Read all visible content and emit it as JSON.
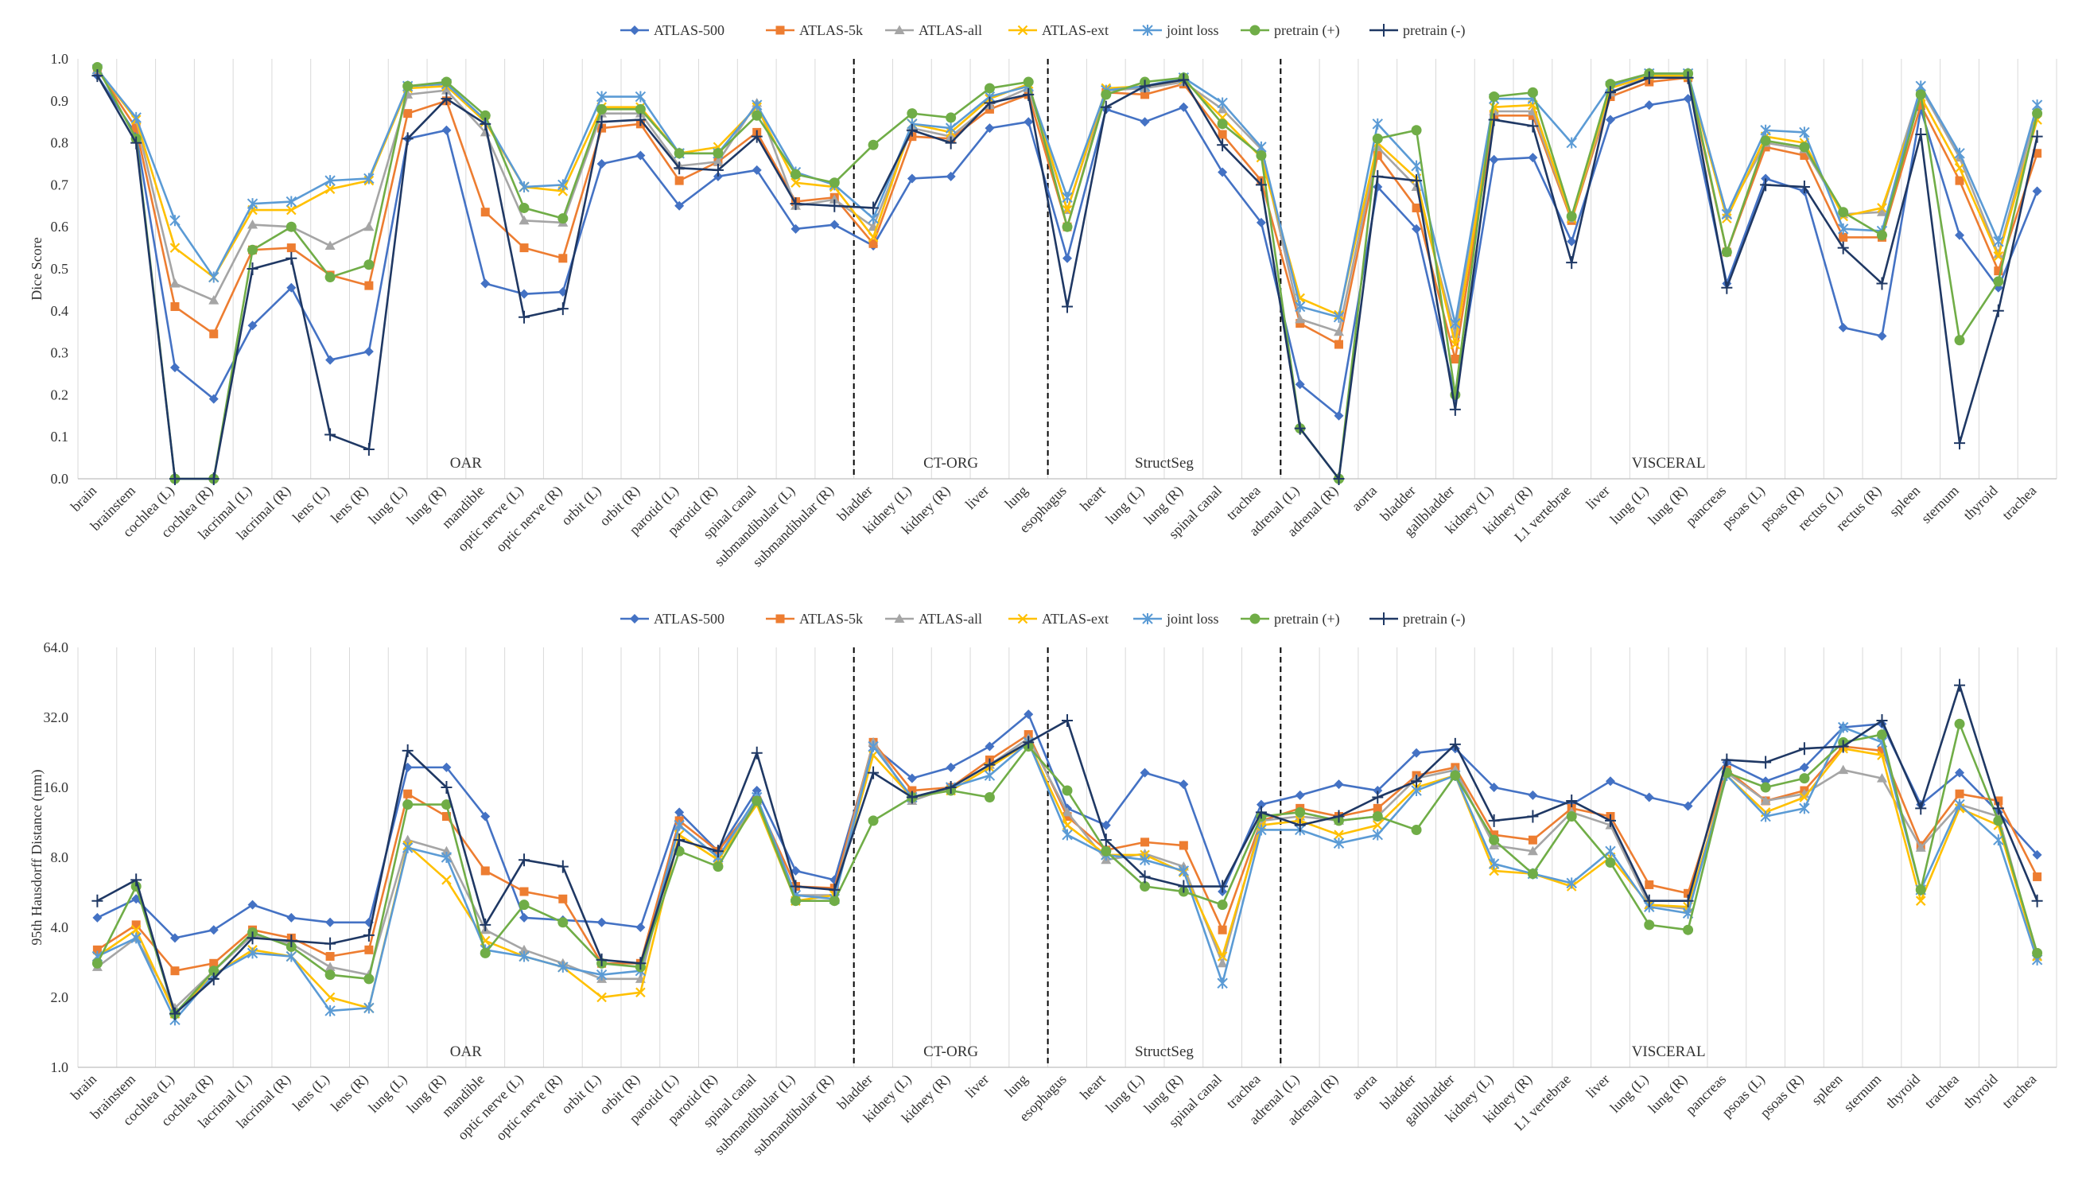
{
  "legend": [
    "ATLAS-500",
    "ATLAS-5k",
    "ATLAS-all",
    "ATLAS-ext",
    "joint loss",
    "pretrain (+)",
    "pretrain (-)"
  ],
  "series_style": [
    {
      "name": "ATLAS-500",
      "color": "#4472c4",
      "marker": "diamond"
    },
    {
      "name": "ATLAS-5k",
      "color": "#ed7d31",
      "marker": "square"
    },
    {
      "name": "ATLAS-all",
      "color": "#a5a5a5",
      "marker": "triangle"
    },
    {
      "name": "ATLAS-ext",
      "color": "#ffc000",
      "marker": "x"
    },
    {
      "name": "joint loss",
      "color": "#5b9bd5",
      "marker": "star"
    },
    {
      "name": "pretrain (+)",
      "color": "#70ad47",
      "marker": "circle"
    },
    {
      "name": "pretrain (-)",
      "color": "#1f3864",
      "marker": "plus"
    }
  ],
  "chart_data": [
    {
      "type": "line",
      "title": "",
      "ylabel": "Dice Score",
      "xlabel": "",
      "ylim": [
        0,
        1
      ],
      "yticks": [
        "0.0",
        "0.1",
        "0.2",
        "0.3",
        "0.4",
        "0.5",
        "0.6",
        "0.7",
        "0.8",
        "0.9",
        "1.0"
      ],
      "categories": [
        "brain",
        "brainstem",
        "cochlea (L)",
        "cochlea (R)",
        "lacrimal (L)",
        "lacrimal (R)",
        "lens (L)",
        "lens (R)",
        "lung (L)",
        "lung (R)",
        "mandible",
        "optic nerve (L)",
        "optic nerve (R)",
        "orbit (L)",
        "orbit (R)",
        "parotid (L)",
        "parotid (R)",
        "spinal canal",
        "submandibular (L)",
        "submandibular (R)",
        "bladder",
        "kidney (L)",
        "kidney (R)",
        "liver",
        "lung",
        "esophagus",
        "heart",
        "lung (L)",
        "lung (R)",
        "spinal canal",
        "trachea",
        "adrenal (L)",
        "adrenal (R)",
        "aorta",
        "bladder",
        "gallbladder",
        "kidney (L)",
        "kidney (R)",
        "L1 vertebrae",
        "liver",
        "lung (L)",
        "lung (R)",
        "pancreas",
        "psoas (L)",
        "psoas (R)",
        "rectus (L)",
        "rectus (R)",
        "spleen",
        "sternum",
        "thyroid",
        "trachea"
      ],
      "groups": [
        {
          "label": "OAR",
          "start": 0,
          "end": 19
        },
        {
          "label": "CT-ORG",
          "start": 20,
          "end": 24
        },
        {
          "label": "StructSeg",
          "start": 25,
          "end": 30
        },
        {
          "label": "VISCERAL",
          "start": 31,
          "end": 50
        }
      ],
      "series": [
        {
          "name": "ATLAS-500",
          "values": [
            0.96,
            0.82,
            0.265,
            0.19,
            0.365,
            0.455,
            0.283,
            0.303,
            0.81,
            0.83,
            0.465,
            0.44,
            0.445,
            0.75,
            0.77,
            0.65,
            0.72,
            0.735,
            0.595,
            0.605,
            0.555,
            0.715,
            0.72,
            0.835,
            0.85,
            0.525,
            0.88,
            0.85,
            0.885,
            0.73,
            0.61,
            0.225,
            0.15,
            0.695,
            0.595,
            0.195,
            0.76,
            0.765,
            0.565,
            0.855,
            0.89,
            0.905,
            0.465,
            0.715,
            0.685,
            0.36,
            0.34,
            0.88,
            0.58,
            0.455,
            0.685
          ]
        },
        {
          "name": "ATLAS-5k",
          "values": [
            0.975,
            0.835,
            0.41,
            0.345,
            0.545,
            0.55,
            0.485,
            0.46,
            0.87,
            0.9,
            0.635,
            0.55,
            0.525,
            0.835,
            0.845,
            0.71,
            0.755,
            0.825,
            0.66,
            0.67,
            0.56,
            0.815,
            0.81,
            0.88,
            0.915,
            0.6,
            0.92,
            0.915,
            0.94,
            0.82,
            0.71,
            0.37,
            0.32,
            0.77,
            0.645,
            0.285,
            0.865,
            0.865,
            0.615,
            0.91,
            0.945,
            0.955,
            0.54,
            0.79,
            0.77,
            0.575,
            0.575,
            0.89,
            0.71,
            0.495,
            0.775
          ]
        },
        {
          "name": "ATLAS-all",
          "values": [
            0.975,
            0.855,
            0.465,
            0.425,
            0.605,
            0.6,
            0.555,
            0.6,
            0.915,
            0.925,
            0.825,
            0.615,
            0.61,
            0.87,
            0.87,
            0.745,
            0.755,
            0.895,
            0.65,
            0.665,
            0.6,
            0.835,
            0.815,
            0.89,
            0.93,
            0.64,
            0.925,
            0.93,
            0.945,
            0.88,
            0.785,
            0.38,
            0.35,
            0.79,
            0.695,
            0.345,
            0.875,
            0.875,
            0.62,
            0.92,
            0.96,
            0.96,
            0.63,
            0.8,
            0.785,
            0.63,
            0.635,
            0.93,
            0.765,
            0.535,
            0.88
          ]
        },
        {
          "name": "ATLAS-ext",
          "values": [
            0.975,
            0.855,
            0.55,
            0.48,
            0.64,
            0.64,
            0.69,
            0.71,
            0.93,
            0.935,
            0.85,
            0.695,
            0.685,
            0.885,
            0.885,
            0.775,
            0.79,
            0.885,
            0.705,
            0.695,
            0.575,
            0.845,
            0.825,
            0.905,
            0.94,
            0.64,
            0.93,
            0.935,
            0.95,
            0.86,
            0.765,
            0.43,
            0.39,
            0.8,
            0.715,
            0.32,
            0.885,
            0.89,
            0.62,
            0.93,
            0.96,
            0.96,
            0.62,
            0.815,
            0.8,
            0.625,
            0.645,
            0.91,
            0.74,
            0.53,
            0.855
          ]
        },
        {
          "name": "joint loss",
          "values": [
            0.975,
            0.86,
            0.615,
            0.48,
            0.655,
            0.66,
            0.71,
            0.715,
            0.935,
            0.94,
            0.855,
            0.695,
            0.7,
            0.91,
            0.91,
            0.775,
            0.775,
            0.89,
            0.73,
            0.7,
            0.62,
            0.845,
            0.835,
            0.91,
            0.935,
            0.67,
            0.925,
            0.935,
            0.955,
            0.895,
            0.79,
            0.41,
            0.385,
            0.845,
            0.745,
            0.37,
            0.905,
            0.905,
            0.8,
            0.935,
            0.965,
            0.965,
            0.63,
            0.83,
            0.825,
            0.595,
            0.59,
            0.935,
            0.775,
            0.565,
            0.89
          ]
        },
        {
          "name": "pretrain (+)",
          "values": [
            0.98,
            0.81,
            0.0,
            0.0,
            0.545,
            0.6,
            0.48,
            0.51,
            0.935,
            0.945,
            0.865,
            0.645,
            0.62,
            0.88,
            0.88,
            0.775,
            0.775,
            0.865,
            0.725,
            0.705,
            0.795,
            0.87,
            0.86,
            0.93,
            0.945,
            0.6,
            0.915,
            0.945,
            0.955,
            0.845,
            0.77,
            0.12,
            0.0,
            0.81,
            0.83,
            0.2,
            0.91,
            0.92,
            0.625,
            0.94,
            0.965,
            0.965,
            0.54,
            0.805,
            0.79,
            0.635,
            0.58,
            0.915,
            0.33,
            0.47,
            0.87
          ]
        },
        {
          "name": "pretrain (-)",
          "values": [
            0.96,
            0.8,
            0.0,
            0.0,
            0.5,
            0.525,
            0.105,
            0.07,
            0.81,
            0.905,
            0.845,
            0.385,
            0.405,
            0.85,
            0.855,
            0.74,
            0.735,
            0.815,
            0.655,
            0.65,
            0.645,
            0.83,
            0.8,
            0.895,
            0.915,
            0.41,
            0.885,
            0.935,
            0.95,
            0.795,
            0.7,
            0.12,
            0.0,
            0.72,
            0.71,
            0.165,
            0.855,
            0.84,
            0.515,
            0.92,
            0.955,
            0.955,
            0.455,
            0.7,
            0.695,
            0.55,
            0.465,
            0.82,
            0.085,
            0.4,
            0.815
          ]
        }
      ]
    },
    {
      "type": "line",
      "title": "",
      "ylabel": "95th Hausdorff Distance (mm)",
      "xlabel": "",
      "yscale": "log2",
      "ylim": [
        1,
        64
      ],
      "yticks": [
        "1.0",
        "2.0",
        "4.0",
        "8.0",
        "16.0",
        "32.0",
        "64.0"
      ],
      "categories": [
        "brain",
        "brainstem",
        "cochlea (L)",
        "cochlea (R)",
        "lacrimal (L)",
        "lacrimal (R)",
        "lens (L)",
        "lens (R)",
        "lung (L)",
        "lung (R)",
        "mandible",
        "optic nerve (L)",
        "optic nerve (R)",
        "orbit (L)",
        "orbit (R)",
        "parotid (L)",
        "parotid (R)",
        "spinal canal",
        "submandibular (L)",
        "submandibular (R)",
        "bladder",
        "kidney (L)",
        "kidney (R)",
        "liver",
        "lung",
        "esophagus",
        "heart",
        "lung (L)",
        "lung (R)",
        "spinal canal",
        "trachea",
        "adrenal (L)",
        "adrenal (R)",
        "aorta",
        "bladder",
        "gallbladder",
        "kidney (L)",
        "kidney (R)",
        "L1 vertebrae",
        "liver",
        "lung (L)",
        "lung (R)",
        "pancreas",
        "psoas (L)",
        "psoas (R)",
        "spleen",
        "sternum",
        "thyroid",
        "trachea",
        "thyroid",
        "trachea"
      ],
      "groups": [
        {
          "label": "OAR",
          "start": 0,
          "end": 19
        },
        {
          "label": "CT-ORG",
          "start": 20,
          "end": 24
        },
        {
          "label": "StructSeg",
          "start": 25,
          "end": 30
        },
        {
          "label": "VISCERAL",
          "start": 31,
          "end": 50
        }
      ],
      "series": [
        {
          "name": "ATLAS-500",
          "values": [
            4.4,
            5.3,
            3.6,
            3.9,
            5.0,
            4.4,
            4.2,
            4.2,
            19.5,
            19.5,
            12.0,
            4.4,
            4.3,
            4.2,
            4.0,
            12.5,
            8.5,
            15.5,
            7.0,
            6.4,
            24.0,
            17.5,
            19.5,
            24.0,
            33.0,
            13.0,
            11.0,
            18.5,
            16.5,
            5.7,
            13.5,
            14.8,
            16.5,
            15.5,
            22.5,
            23.5,
            16.0,
            14.8,
            13.5,
            17.0,
            14.5,
            13.3,
            20.5,
            17.0,
            19.5,
            29.0,
            30.0,
            13.5,
            18.5,
            12.5,
            8.2
          ]
        },
        {
          "name": "ATLAS-5k",
          "values": [
            3.2,
            4.1,
            2.6,
            2.8,
            3.9,
            3.6,
            3.0,
            3.2,
            15.0,
            12.0,
            7.0,
            5.7,
            5.3,
            2.8,
            2.8,
            11.5,
            8.5,
            14.0,
            6.0,
            5.9,
            25.0,
            15.5,
            16.0,
            21.0,
            27.0,
            12.0,
            8.6,
            9.3,
            9.0,
            3.9,
            11.5,
            13.0,
            12.0,
            13.0,
            18.0,
            19.5,
            10.0,
            9.5,
            13.0,
            12.0,
            6.1,
            5.6,
            19.0,
            14.0,
            15.5,
            24.0,
            23.0,
            9.0,
            15.0,
            14.0,
            6.6
          ]
        },
        {
          "name": "ATLAS-all",
          "values": [
            2.7,
            3.6,
            1.8,
            2.6,
            3.7,
            3.4,
            2.7,
            2.5,
            9.5,
            8.5,
            3.9,
            3.2,
            2.8,
            2.4,
            2.4,
            11.0,
            8.0,
            14.0,
            5.5,
            5.5,
            25.0,
            14.0,
            16.0,
            20.0,
            26.0,
            12.5,
            7.8,
            8.3,
            7.3,
            2.8,
            11.5,
            12.0,
            11.5,
            12.0,
            17.5,
            19.0,
            9.0,
            8.5,
            12.5,
            11.0,
            5.0,
            4.8,
            18.5,
            14.0,
            15.0,
            19.0,
            17.5,
            8.8,
            13.5,
            12.0,
            3.0
          ]
        },
        {
          "name": "ATLAS-ext",
          "values": [
            3.0,
            3.9,
            1.7,
            2.5,
            3.2,
            3.0,
            2.0,
            1.8,
            9.0,
            6.4,
            3.5,
            3.0,
            2.7,
            2.0,
            2.1,
            10.0,
            7.8,
            13.5,
            5.2,
            5.5,
            22.0,
            14.5,
            15.5,
            19.5,
            25.0,
            11.0,
            8.2,
            8.2,
            6.9,
            3.0,
            11.0,
            11.5,
            10.0,
            11.0,
            16.0,
            18.0,
            7.0,
            6.8,
            6.0,
            8.0,
            5.0,
            4.9,
            18.0,
            12.5,
            14.5,
            23.5,
            22.0,
            5.2,
            13.0,
            11.0,
            3.0
          ]
        },
        {
          "name": "joint loss",
          "values": [
            3.0,
            3.6,
            1.6,
            2.5,
            3.1,
            3.0,
            1.75,
            1.8,
            8.8,
            8.0,
            3.2,
            3.0,
            2.7,
            2.5,
            2.6,
            11.0,
            8.0,
            14.5,
            5.5,
            5.3,
            24.0,
            14.5,
            16.0,
            18.0,
            25.0,
            10.0,
            8.2,
            7.8,
            7.0,
            2.3,
            10.5,
            10.5,
            9.2,
            10.0,
            15.5,
            18.0,
            7.5,
            6.8,
            6.2,
            8.5,
            4.9,
            4.6,
            18.0,
            12.0,
            13.0,
            29.0,
            25.0,
            5.8,
            13.5,
            9.5,
            2.9
          ]
        },
        {
          "name": "pretrain (+)",
          "values": [
            2.8,
            6.0,
            1.7,
            2.6,
            3.8,
            3.3,
            2.5,
            2.4,
            13.5,
            13.5,
            3.1,
            5.0,
            4.2,
            2.8,
            2.7,
            8.5,
            7.3,
            14.0,
            5.2,
            5.2,
            11.5,
            14.5,
            15.5,
            14.5,
            24.0,
            15.5,
            8.5,
            6.0,
            5.7,
            5.0,
            12.0,
            12.5,
            11.5,
            12.0,
            10.5,
            18.0,
            9.5,
            6.8,
            12.0,
            7.6,
            4.1,
            3.9,
            18.5,
            16.0,
            17.5,
            25.0,
            27.0,
            5.8,
            30.0,
            11.5,
            3.1
          ]
        },
        {
          "name": "pretrain (-)",
          "values": [
            5.2,
            6.4,
            1.7,
            2.4,
            3.6,
            3.5,
            3.4,
            3.7,
            23.0,
            16.0,
            4.1,
            7.8,
            7.3,
            2.9,
            2.8,
            9.5,
            8.5,
            22.5,
            6.0,
            5.8,
            18.5,
            14.5,
            16.0,
            20.0,
            25.0,
            31.0,
            9.5,
            6.6,
            6.0,
            6.0,
            12.5,
            11.0,
            12.0,
            14.5,
            17.0,
            24.5,
            11.5,
            12.0,
            14.0,
            11.5,
            5.2,
            5.2,
            21.0,
            20.5,
            23.5,
            24.0,
            31.0,
            13.0,
            44.0,
            13.0,
            5.2
          ]
        }
      ]
    }
  ]
}
